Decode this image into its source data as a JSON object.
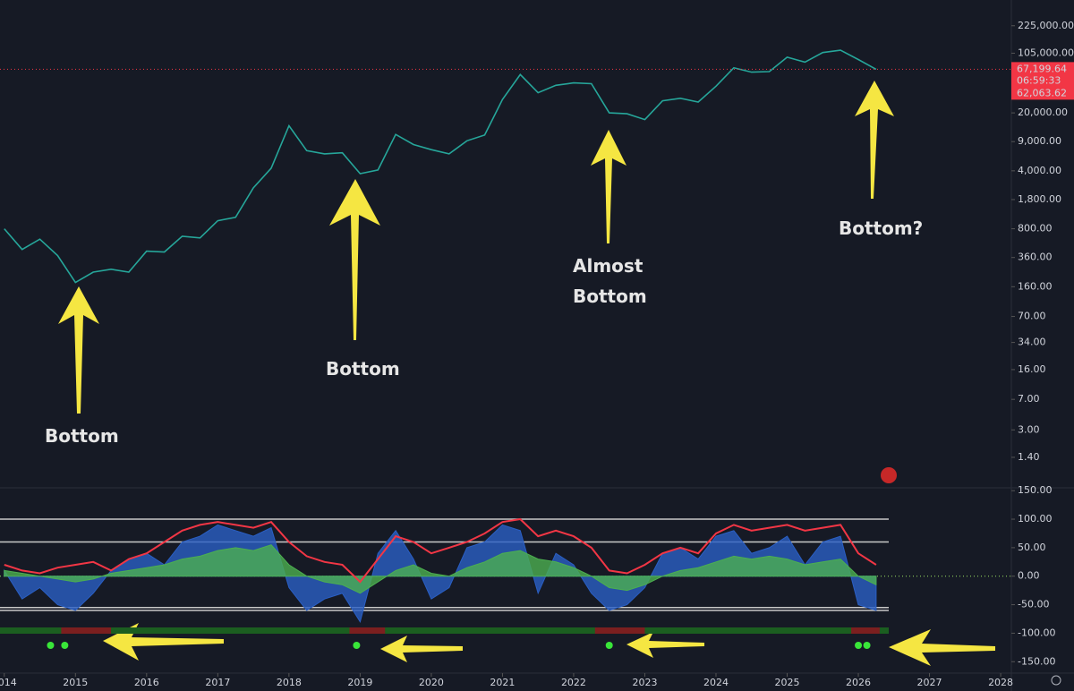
{
  "chart_data": [
    {
      "type": "line",
      "log_scale": true,
      "xlim": [
        2013.94,
        2028.15
      ],
      "ylim": [
        0.6,
        460000
      ],
      "yticks": [
        {
          "value": 225000,
          "label": "225,000.00"
        },
        {
          "value": 105000,
          "label": "105,000.00"
        },
        {
          "value": 20000,
          "label": "20,000.00"
        },
        {
          "value": 9000,
          "label": "9,000.00"
        },
        {
          "value": 4000,
          "label": "4,000.00"
        },
        {
          "value": 1800,
          "label": "1,800.00"
        },
        {
          "value": 800,
          "label": "800.00"
        },
        {
          "value": 360,
          "label": "360.00"
        },
        {
          "value": 160,
          "label": "160.00"
        },
        {
          "value": 70,
          "label": "70.00"
        },
        {
          "value": 34,
          "label": "34.00"
        },
        {
          "value": 16,
          "label": "16.00"
        },
        {
          "value": 7,
          "label": "7.00"
        },
        {
          "value": 3,
          "label": "3.00"
        },
        {
          "value": 1.4,
          "label": "1.40"
        }
      ],
      "x": [
        2014,
        2014.25,
        2014.5,
        2014.75,
        2015,
        2015.25,
        2015.5,
        2015.75,
        2016,
        2016.25,
        2016.5,
        2016.75,
        2017,
        2017.25,
        2017.5,
        2017.75,
        2018,
        2018.25,
        2018.5,
        2018.75,
        2019,
        2019.25,
        2019.5,
        2019.75,
        2020,
        2020.25,
        2020.5,
        2020.75,
        2021,
        2021.25,
        2021.5,
        2021.75,
        2022,
        2022.25,
        2022.5,
        2022.75,
        2023,
        2023.25,
        2023.5,
        2023.75,
        2024,
        2024.25,
        2024.5,
        2024.75,
        2025,
        2025.25,
        2025.5,
        2025.75,
        2026,
        2026.25
      ],
      "series": [
        {
          "color": "#26a69a",
          "values": [
            800,
            450,
            600,
            380,
            180,
            240,
            260,
            240,
            430,
            420,
            650,
            620,
            1000,
            1100,
            2500,
            4300,
            14000,
            7000,
            6400,
            6600,
            3700,
            4100,
            11000,
            8300,
            7200,
            6400,
            9200,
            10800,
            29000,
            58000,
            35000,
            43000,
            46000,
            45000,
            20000,
            19500,
            16600,
            28000,
            30000,
            27000,
            42000,
            70000,
            62000,
            63000,
            94000,
            82000,
            107000,
            114000,
            88000,
            67200
          ]
        }
      ],
      "price_labels": [
        {
          "value": 67199.64,
          "label": "67,199.64"
        },
        {
          "value": 62063.62,
          "label": "62,063.62"
        }
      ],
      "countdown": "06:59:33",
      "annotations": [
        "Bottom",
        "Bottom",
        "Almost Bottom",
        "Bottom?"
      ]
    },
    {
      "type": "oscillator",
      "xlim": [
        2013.94,
        2028.15
      ],
      "ylim": [
        -170,
        155
      ],
      "xticks": [
        2014,
        2015,
        2016,
        2017,
        2018,
        2019,
        2020,
        2021,
        2022,
        2023,
        2024,
        2025,
        2026,
        2027,
        2028
      ],
      "yticks": [
        {
          "value": 150,
          "label": "150.00"
        },
        {
          "value": 100,
          "label": "100.00"
        },
        {
          "value": 50,
          "label": "50.00"
        },
        {
          "value": 0,
          "label": "0.00"
        },
        {
          "value": -50,
          "label": "-50.00"
        },
        {
          "value": -100,
          "label": "-100.00"
        },
        {
          "value": -150,
          "label": "-150.00"
        }
      ],
      "hlines": [
        100,
        60,
        -55,
        -60
      ],
      "x": [
        2014,
        2014.25,
        2014.5,
        2014.75,
        2015,
        2015.25,
        2015.5,
        2015.75,
        2016,
        2016.25,
        2016.5,
        2016.75,
        2017,
        2017.25,
        2017.5,
        2017.75,
        2018,
        2018.25,
        2018.5,
        2018.75,
        2019,
        2019.25,
        2019.5,
        2019.75,
        2020,
        2020.25,
        2020.5,
        2020.75,
        2021,
        2021.25,
        2021.5,
        2021.75,
        2022,
        2022.25,
        2022.5,
        2022.75,
        2023,
        2023.25,
        2023.5,
        2023.75,
        2024,
        2024.25,
        2024.5,
        2024.75,
        2025,
        2025.25,
        2025.5,
        2025.75,
        2026,
        2026.25
      ],
      "series": [
        {
          "color": "#2a5fc4",
          "fill": true,
          "values": [
            10,
            -40,
            -20,
            -50,
            -60,
            -30,
            10,
            30,
            40,
            20,
            60,
            70,
            90,
            80,
            70,
            85,
            -20,
            -60,
            -40,
            -30,
            -80,
            40,
            80,
            30,
            -40,
            -20,
            50,
            60,
            90,
            80,
            -30,
            40,
            20,
            -30,
            -60,
            -50,
            -20,
            40,
            50,
            30,
            70,
            80,
            40,
            50,
            70,
            20,
            60,
            70,
            -50,
            -60
          ]
        },
        {
          "color": "#4caf50",
          "fill": true,
          "values": [
            10,
            5,
            0,
            -5,
            -10,
            -5,
            5,
            10,
            15,
            20,
            30,
            35,
            45,
            50,
            45,
            55,
            20,
            0,
            -10,
            -15,
            -30,
            -10,
            10,
            20,
            5,
            0,
            15,
            25,
            40,
            45,
            30,
            25,
            15,
            0,
            -20,
            -25,
            -15,
            0,
            10,
            15,
            25,
            35,
            30,
            35,
            30,
            20,
            25,
            30,
            0,
            -15
          ]
        },
        {
          "color": "#f23645",
          "fill": false,
          "values": [
            20,
            10,
            5,
            15,
            20,
            25,
            10,
            30,
            40,
            60,
            80,
            90,
            95,
            90,
            85,
            95,
            60,
            35,
            25,
            20,
            -10,
            30,
            70,
            60,
            40,
            50,
            60,
            75,
            95,
            100,
            70,
            80,
            70,
            50,
            10,
            5,
            20,
            40,
            50,
            40,
            75,
            90,
            80,
            85,
            90,
            80,
            85,
            90,
            40,
            20
          ]
        }
      ],
      "signals": [
        2014.65,
        2014.85,
        2018.95,
        2022.5,
        2026.0,
        2026.12
      ],
      "bear_periods": [
        [
          2014.8,
          2015.5
        ],
        [
          2018.85,
          2019.35
        ],
        [
          2022.3,
          2023.0
        ],
        [
          2025.9,
          2026.3
        ]
      ]
    }
  ]
}
